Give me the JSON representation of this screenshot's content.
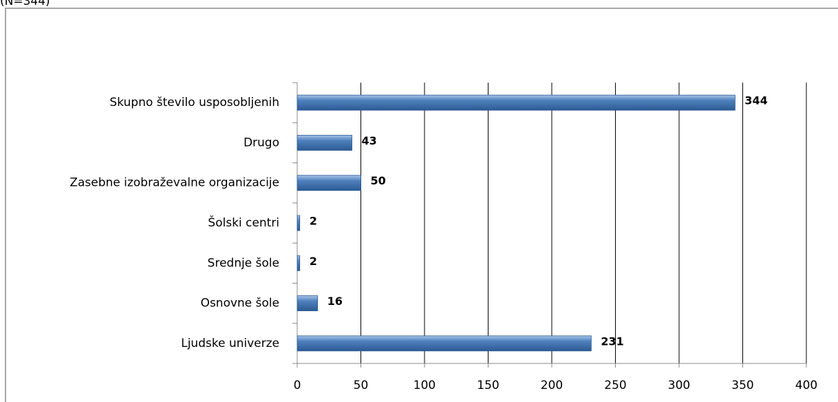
{
  "chart_data": {
    "type": "bar",
    "orientation": "horizontal",
    "subtitle": "(N=344)",
    "categories": [
      "Skupno število usposobljenih",
      "Drugo",
      "Zasebne izobraževalne organizacije",
      "Šolski centri",
      "Srednje šole",
      "Osnovne šole",
      "Ljudske univerze"
    ],
    "values": [
      344,
      43,
      50,
      2,
      2,
      16,
      231
    ],
    "color": "#4f81bd",
    "xlim": [
      0,
      400
    ],
    "xticks": [
      0,
      50,
      100,
      150,
      200,
      250,
      300,
      350,
      400
    ],
    "grid": true
  }
}
